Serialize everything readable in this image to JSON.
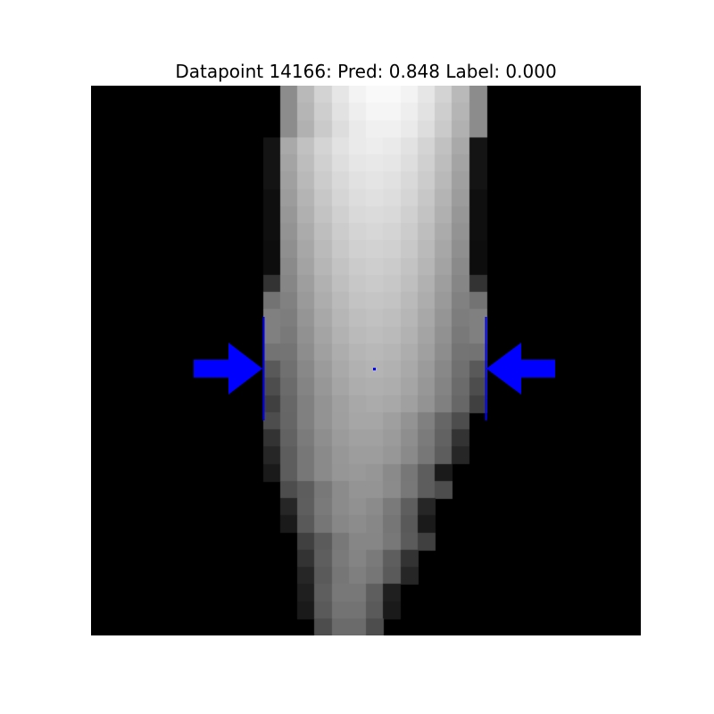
{
  "figure": {
    "title": "Datapoint 14166: Pred: 0.848 Label: 0.000"
  },
  "image": {
    "grid_size": 32,
    "description": "grayscale pixel image of a bright tapered vertical shape on black",
    "background_color": "#000000"
  },
  "annotations": {
    "marker_color": "#0000ff",
    "items": [
      {
        "name": "left-arrow",
        "direction": "right"
      },
      {
        "name": "right-arrow",
        "direction": "left"
      },
      {
        "name": "left-boundary-line"
      },
      {
        "name": "right-boundary-line"
      },
      {
        "name": "center-point"
      }
    ]
  }
}
